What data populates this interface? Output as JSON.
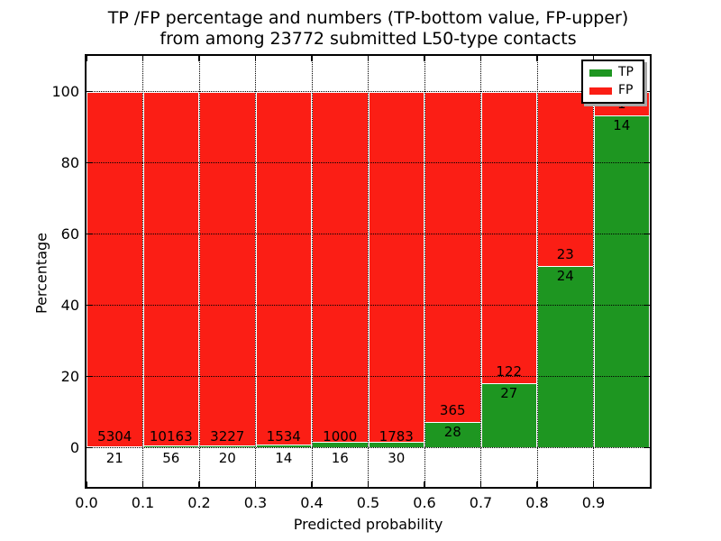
{
  "figure": {
    "title_line1": "TP /FP percentage and numbers (TP-bottom value, FP-upper)",
    "title_line2": "from among 23772 submitted L50-type contacts"
  },
  "axes": {
    "xlabel": "Predicted probability",
    "ylabel": "Percentage"
  },
  "legend": {
    "items": [
      {
        "label": "TP",
        "color": "#1e9621"
      },
      {
        "label": "FP",
        "color": "#fb1e15"
      }
    ]
  },
  "chart_data": {
    "type": "bar",
    "stacked": true,
    "normalized": "each bar totals 100%",
    "title": "TP /FP percentage and numbers (TP-bottom value, FP-upper) from among 23772 submitted L50-type contacts",
    "xlabel": "Predicted probability",
    "ylabel": "Percentage",
    "total_submitted_contacts": 23772,
    "bin_edges": [
      0.0,
      0.1,
      0.2,
      0.3,
      0.4,
      0.5,
      0.6,
      0.7,
      0.8,
      0.9,
      1.0
    ],
    "categories": [
      "0.0-0.1",
      "0.1-0.2",
      "0.2-0.3",
      "0.3-0.4",
      "0.4-0.5",
      "0.5-0.6",
      "0.6-0.7",
      "0.7-0.8",
      "0.8-0.9",
      "0.9-1.0"
    ],
    "series": [
      {
        "name": "TP",
        "color": "#1e9621",
        "counts": [
          21,
          56,
          20,
          14,
          16,
          30,
          28,
          27,
          24,
          14
        ]
      },
      {
        "name": "FP",
        "color": "#fb1e15",
        "counts": [
          5304,
          10163,
          3227,
          1534,
          1000,
          1783,
          365,
          122,
          23,
          1
        ]
      }
    ],
    "x_tick_labels": [
      "0.0",
      "0.1",
      "0.2",
      "0.3",
      "0.4",
      "0.5",
      "0.6",
      "0.7",
      "0.8",
      "0.9"
    ],
    "y_tick_labels": [
      "0",
      "20",
      "40",
      "60",
      "80",
      "100"
    ],
    "y_tick_values": [
      0,
      20,
      40,
      60,
      80,
      100
    ],
    "xlim": [
      0.0,
      1.0
    ],
    "ylim": [
      -11,
      110
    ],
    "grid": true,
    "grid_style": "dotted",
    "bar_edge_color": "#ffffff",
    "legend_position": "upper right"
  }
}
